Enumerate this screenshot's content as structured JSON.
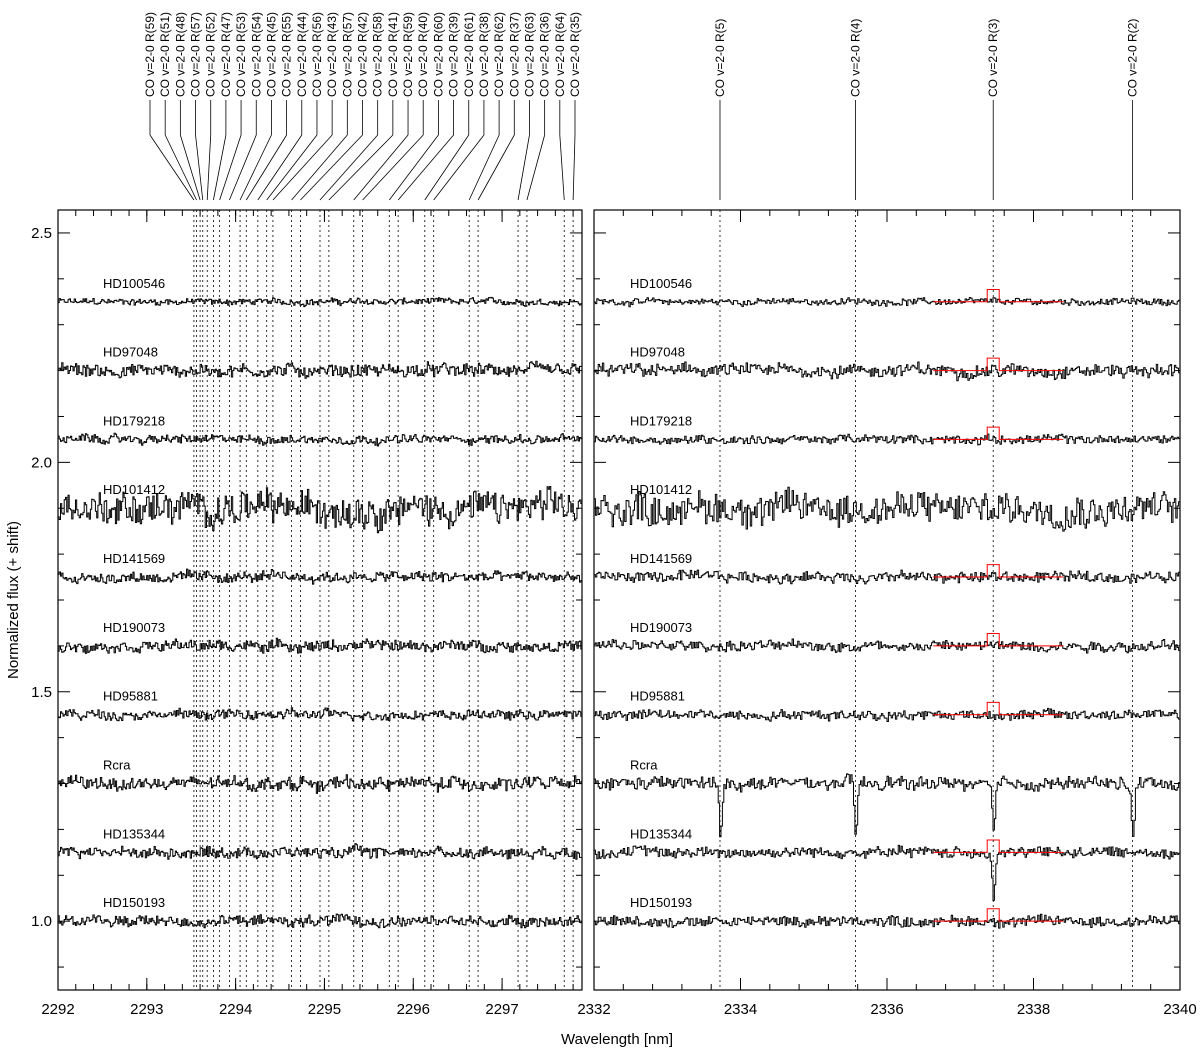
{
  "chart_data": {
    "type": "line",
    "xlabel": "Wavelength [nm]",
    "ylabel": "Normalized flux (+ shift)",
    "ylim": [
      0.85,
      2.55
    ],
    "yticks": [
      "1.0",
      "1.5",
      "2.0",
      "2.5"
    ],
    "panels": [
      {
        "xlim": [
          2292,
          2297.9
        ],
        "xticks": [
          "2292",
          "2293",
          "2294",
          "2295",
          "2296",
          "2297"
        ]
      },
      {
        "xlim": [
          2332,
          2340
        ],
        "xticks": [
          "2332",
          "2334",
          "2336",
          "2338",
          "2340"
        ]
      }
    ],
    "series": [
      {
        "name": "HD100546",
        "offset": 2.35,
        "noise": 0.006
      },
      {
        "name": "HD97048",
        "offset": 2.2,
        "noise": 0.012
      },
      {
        "name": "HD179218",
        "offset": 2.05,
        "noise": 0.008
      },
      {
        "name": "HD101412",
        "offset": 1.9,
        "noise": 0.03
      },
      {
        "name": "HD141569",
        "offset": 1.75,
        "noise": 0.01
      },
      {
        "name": "HD190073",
        "offset": 1.6,
        "noise": 0.01
      },
      {
        "name": "HD95881",
        "offset": 1.45,
        "noise": 0.009
      },
      {
        "name": "Rcra",
        "offset": 1.3,
        "noise": 0.012
      },
      {
        "name": "HD135344",
        "offset": 1.15,
        "noise": 0.01
      },
      {
        "name": "HD150193",
        "offset": 1.0,
        "noise": 0.01
      }
    ],
    "line_markers": {
      "panel1": [
        {
          "label": "CO v=2-0 R(59)",
          "x": 2293.53
        },
        {
          "label": "CO v=2-0 R(51)",
          "x": 2293.56
        },
        {
          "label": "CO v=2-0 R(48)",
          "x": 2293.6
        },
        {
          "label": "CO v=2-0 R(57)",
          "x": 2293.63
        },
        {
          "label": "CO v=2-0 R(52)",
          "x": 2293.68
        },
        {
          "label": "CO v=2-0 R(47)",
          "x": 2293.75
        },
        {
          "label": "CO v=2-0 R(53)",
          "x": 2293.82
        },
        {
          "label": "CO v=2-0 R(54)",
          "x": 2293.93
        },
        {
          "label": "CO v=2-0 R(45)",
          "x": 2294.05
        },
        {
          "label": "CO v=2-0 R(55)",
          "x": 2294.12
        },
        {
          "label": "CO v=2-0 R(44)",
          "x": 2294.25
        },
        {
          "label": "CO v=2-0 R(56)",
          "x": 2294.35
        },
        {
          "label": "CO v=2-0 R(43)",
          "x": 2294.42
        },
        {
          "label": "CO v=2-0 R(57)",
          "x": 2294.63
        },
        {
          "label": "CO v=2-0 R(42)",
          "x": 2294.73
        },
        {
          "label": "CO v=2-0 R(58)",
          "x": 2294.95
        },
        {
          "label": "CO v=2-0 R(41)",
          "x": 2295.05
        },
        {
          "label": "CO v=2-0 R(59)",
          "x": 2295.33
        },
        {
          "label": "CO v=2-0 R(40)",
          "x": 2295.43
        },
        {
          "label": "CO v=2-0 R(60)",
          "x": 2295.73
        },
        {
          "label": "CO v=2-0 R(39)",
          "x": 2295.83
        },
        {
          "label": "CO v=2-0 R(61)",
          "x": 2296.13
        },
        {
          "label": "CO v=2-0 R(38)",
          "x": 2296.23
        },
        {
          "label": "CO v=2-0 R(62)",
          "x": 2296.63
        },
        {
          "label": "CO v=2-0 R(37)",
          "x": 2296.73
        },
        {
          "label": "CO v=2-0 R(63)",
          "x": 2297.18
        },
        {
          "label": "CO v=2-0 R(36)",
          "x": 2297.28
        },
        {
          "label": "CO v=2-0 R(64)",
          "x": 2297.7
        },
        {
          "label": "CO v=2-0 R(35)",
          "x": 2297.8
        }
      ],
      "panel2": [
        {
          "label": "CO v=2-0 R(5)",
          "x": 2333.72
        },
        {
          "label": "CO v=2-0 R(4)",
          "x": 2335.57
        },
        {
          "label": "CO v=2-0 R(3)",
          "x": 2337.45
        },
        {
          "label": "CO v=2-0 R(2)",
          "x": 2339.35
        }
      ]
    },
    "colors": {
      "spectrum": "#000000",
      "model": "#ff0000"
    }
  }
}
